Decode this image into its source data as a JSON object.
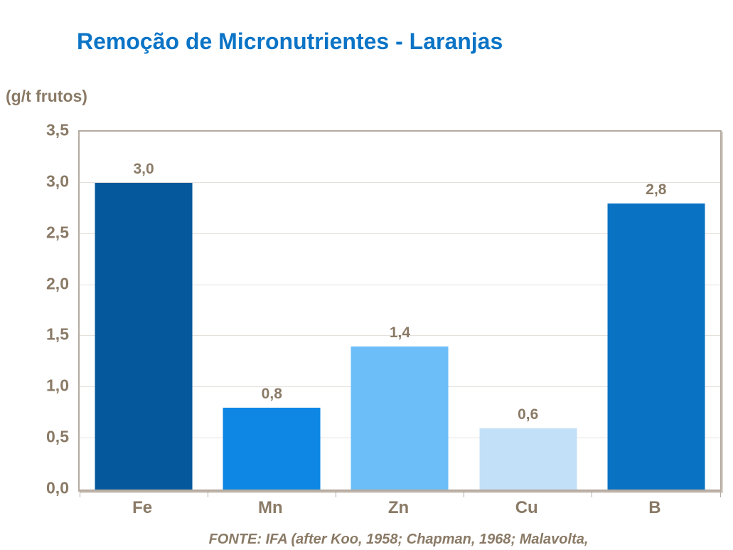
{
  "title": "Remoção de Micronutrientes - Laranjas",
  "units_label": "(g/t frutos)",
  "source_note": "FONTE: IFA (after Koo, 1958; Chapman, 1968; Malavolta,",
  "colors": {
    "title_text": "#0b74c6",
    "axis_text": "#8a7a66",
    "plot_border": "#b5aba0",
    "gridline": "#e4e1dc",
    "background": "#ffffff"
  },
  "chart_data": {
    "type": "bar",
    "title": "Remoção de Micronutrientes - Laranjas",
    "xlabel": "",
    "ylabel": "(g/t frutos)",
    "categories": [
      "Fe",
      "Mn",
      "Zn",
      "Cu",
      "B"
    ],
    "values": [
      3.0,
      0.8,
      1.4,
      0.6,
      2.8
    ],
    "value_labels": [
      "3,0",
      "0,8",
      "1,4",
      "0,6",
      "2,8"
    ],
    "bar_colors": [
      "#04589b",
      "#0d86e4",
      "#6cbef8",
      "#c3e0f9",
      "#0a72c2"
    ],
    "ylim": [
      0,
      3.5
    ],
    "ytick_step": 0.5,
    "ytick_labels": [
      "0,0",
      "0,5",
      "1,0",
      "1,5",
      "2,0",
      "2,5",
      "3,0",
      "3,5"
    ],
    "grid": true,
    "legend": false,
    "source": "FONTE: IFA (after Koo, 1958; Chapman, 1968; Malavolta,"
  }
}
